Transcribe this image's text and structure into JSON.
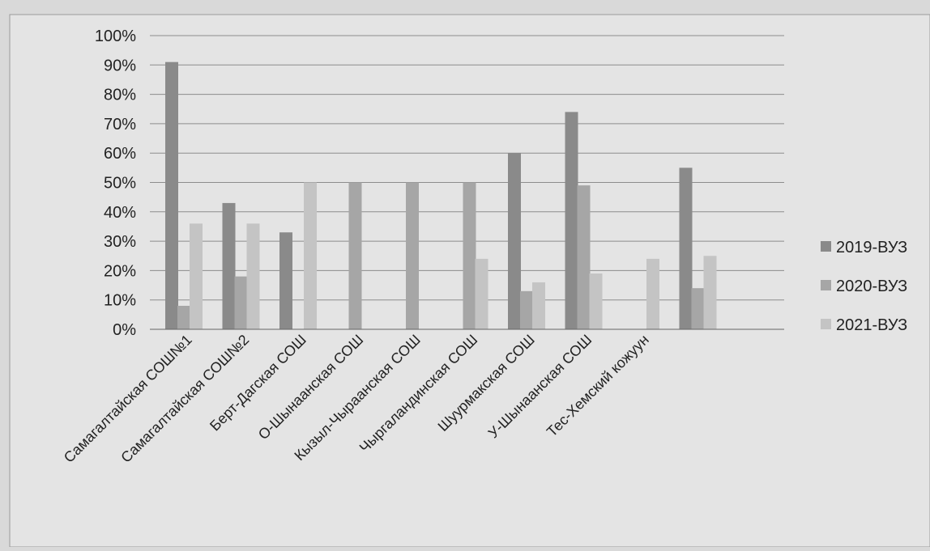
{
  "chart_data": {
    "type": "bar",
    "categories": [
      "Самагалтайская СОШ№1",
      "Самагалтайская СОШ№2",
      "Берт-Дагская СОШ",
      "О-Шынаанская СОШ",
      "Кызыл-Чыраанская СОШ",
      "Чыргаландинская СОШ",
      "Шуурмакская СОШ",
      "У-Шынаанская СОШ",
      "Тес-Хемский кожуун"
    ],
    "series": [
      {
        "name": "2019-ВУЗ",
        "values": [
          91,
          43,
          33,
          0,
          0,
          0,
          60,
          74,
          0
        ]
      },
      {
        "name": "2020-ВУЗ",
        "values": [
          8,
          18,
          0,
          50,
          50,
          50,
          13,
          49,
          0
        ]
      },
      {
        "name": "2021-ВУЗ",
        "values": [
          36,
          36,
          50,
          0,
          0,
          24,
          16,
          19,
          24
        ]
      }
    ],
    "extra_group": {
      "values": [
        55,
        14,
        25
      ]
    },
    "y_ticks": [
      "0%",
      "10%",
      "20%",
      "30%",
      "40%",
      "50%",
      "60%",
      "70%",
      "80%",
      "90%",
      "100%"
    ],
    "ylim": [
      0,
      100
    ],
    "grid": true,
    "legend_position": "right",
    "colors": {
      "series": [
        "#8a8a8a",
        "#a6a6a6",
        "#c4c4c4"
      ],
      "grid": "#8c8c8c",
      "background": "#d9d9d9",
      "plot": "#e4e4e4"
    }
  }
}
